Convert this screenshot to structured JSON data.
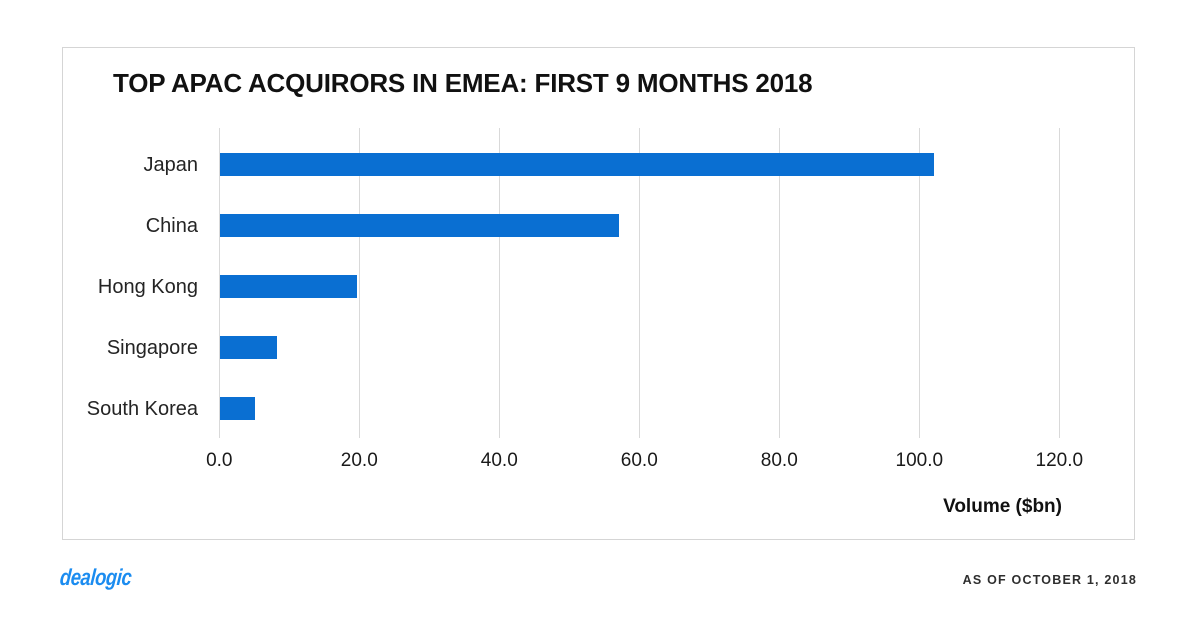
{
  "chart_data": {
    "type": "bar",
    "orientation": "horizontal",
    "title": "TOP APAC ACQUIRORS IN EMEA: FIRST 9 MONTHS 2018",
    "categories": [
      "Japan",
      "China",
      "Hong Kong",
      "Singapore",
      "South Korea"
    ],
    "values": [
      102.0,
      56.9,
      19.6,
      8.1,
      4.9
    ],
    "xlabel": "Volume ($bn)",
    "xlim": [
      0,
      130
    ],
    "xticks": [
      0,
      20,
      40,
      60,
      80,
      100,
      120
    ],
    "xtick_labels": [
      "0.0",
      "20.0",
      "40.0",
      "60.0",
      "80.0",
      "100.0",
      "120.0"
    ],
    "grid": "vertical",
    "legend": "none"
  },
  "colors": {
    "bar": "#0a6fd2",
    "gridline": "#d9d9d9",
    "card_border": "#d5d5d5",
    "logo_blue": "#1b8cf0"
  },
  "footer": {
    "logo_text": "dealogic",
    "as_of_text": "AS OF OCTOBER 1, 2018"
  }
}
